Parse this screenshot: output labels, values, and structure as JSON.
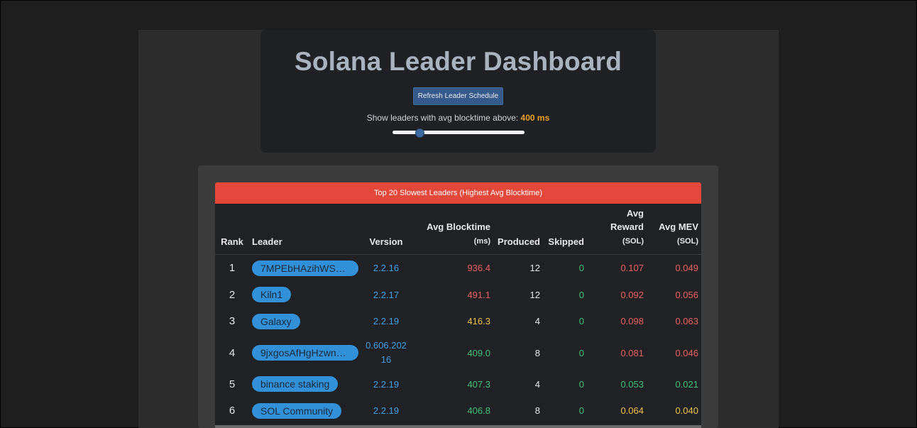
{
  "header": {
    "title": "Solana Leader Dashboard",
    "refresh_label": "Refresh Leader Schedule",
    "filter_label": "Show leaders with avg blocktime above:",
    "filter_value": "400 ms",
    "slider_fraction": 0.19
  },
  "table": {
    "banner": "Top 20 Slowest Leaders (Highest Avg Blocktime)",
    "headers": {
      "rank": "Rank",
      "leader": "Leader",
      "version": "Version",
      "blocktime": "Avg Blocktime",
      "blocktime_unit": "(ms)",
      "produced": "Produced",
      "skipped": "Skipped",
      "reward_1": "Avg",
      "reward_2": "Reward",
      "reward_unit": "(SOL)",
      "mev": "Avg MEV",
      "mev_unit": "(SOL)"
    },
    "rows": [
      {
        "rank": "1",
        "leader": "7MPEbHAzihWSC...",
        "version": "2.2.16",
        "blocktime": "936.4",
        "produced": "12",
        "skipped": "0",
        "reward": "0.107",
        "mev": "0.049"
      },
      {
        "rank": "2",
        "leader": "Kiln1",
        "version": "2.2.17",
        "blocktime": "491.1",
        "produced": "12",
        "skipped": "0",
        "reward": "0.092",
        "mev": "0.056"
      },
      {
        "rank": "3",
        "leader": "Galaxy",
        "version": "2.2.19",
        "blocktime": "416.3",
        "produced": "4",
        "skipped": "0",
        "reward": "0.098",
        "mev": "0.063"
      },
      {
        "rank": "4",
        "leader": "9jxgosAfHgHzwnxs...",
        "version": "0.606.20216",
        "blocktime": "409.0",
        "produced": "8",
        "skipped": "0",
        "reward": "0.081",
        "mev": "0.046"
      },
      {
        "rank": "5",
        "leader": "binance staking",
        "version": "2.2.19",
        "blocktime": "407.3",
        "produced": "4",
        "skipped": "0",
        "reward": "0.053",
        "mev": "0.021"
      },
      {
        "rank": "6",
        "leader": "SOL Community",
        "version": "2.2.19",
        "blocktime": "406.8",
        "produced": "8",
        "skipped": "0",
        "reward": "0.064",
        "mev": "0.040"
      }
    ]
  },
  "colors": {
    "red": "#ef6161",
    "yellow": "#f2c34c",
    "green": "#3ec07a",
    "blue": "#3fa0e8",
    "banner": "#e4483b",
    "pill": "#3190d8"
  }
}
